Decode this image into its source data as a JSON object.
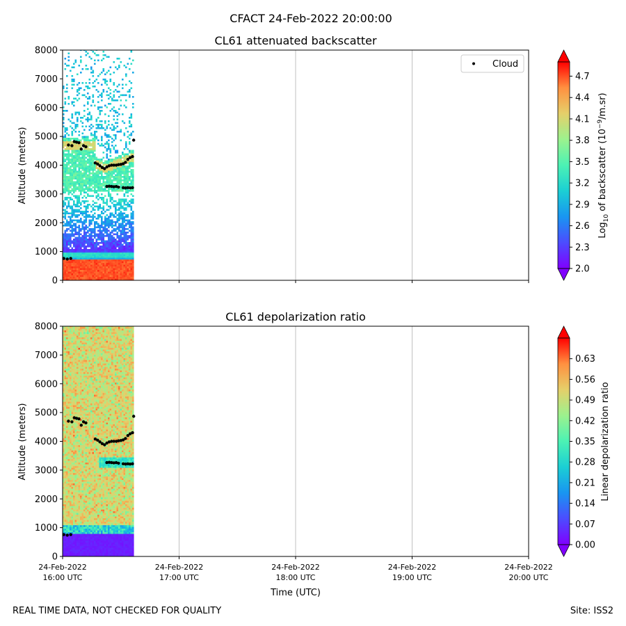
{
  "figure": {
    "suptitle": "CFACT 24-Feb-2022 20:00:00",
    "footer_left": "REAL TIME DATA, NOT CHECKED FOR QUALITY",
    "footer_right": "Site: ISS2",
    "xlabel": "Time (UTC)"
  },
  "chart_data": [
    {
      "type": "heatmap",
      "title": "CL61 attenuated backscatter",
      "ylabel": "Altitude (meters)",
      "ylim": [
        0,
        8000
      ],
      "yticks": [
        "0",
        "1000",
        "2000",
        "3000",
        "4000",
        "5000",
        "6000",
        "7000",
        "8000"
      ],
      "xlim_hours_utc": [
        16,
        20
      ],
      "xticks": [
        {
          "date": "24-Feb-2022",
          "time": "16:00 UTC"
        },
        {
          "date": "24-Feb-2022",
          "time": "17:00 UTC"
        },
        {
          "date": "24-Feb-2022",
          "time": "18:00 UTC"
        },
        {
          "date": "24-Feb-2022",
          "time": "19:00 UTC"
        },
        {
          "date": "24-Feb-2022",
          "time": "20:00 UTC"
        }
      ],
      "data_end_hour_utc": 16.61,
      "legend": {
        "label": "Cloud",
        "position": "upper right"
      },
      "colorbar": {
        "label_prefix": "Log",
        "label_sub": "10",
        "label_mid": " of backscatter (10",
        "label_sup": "−9",
        "label_suffix": "/m.sr)",
        "min": 2.0,
        "max": 4.9,
        "ticks": [
          "2.0",
          "2.3",
          "2.6",
          "2.9",
          "3.2",
          "3.5",
          "3.8",
          "4.1",
          "4.4",
          "4.7"
        ],
        "colormap": "rainbow"
      }
    },
    {
      "type": "heatmap",
      "title": "CL61 depolarization ratio",
      "ylabel": "Altitude (meters)",
      "ylim": [
        0,
        8000
      ],
      "yticks": [
        "0",
        "1000",
        "2000",
        "3000",
        "4000",
        "5000",
        "6000",
        "7000",
        "8000"
      ],
      "xlim_hours_utc": [
        16,
        20
      ],
      "xticks": [
        {
          "date": "24-Feb-2022",
          "time": "16:00 UTC"
        },
        {
          "date": "24-Feb-2022",
          "time": "17:00 UTC"
        },
        {
          "date": "24-Feb-2022",
          "time": "18:00 UTC"
        },
        {
          "date": "24-Feb-2022",
          "time": "19:00 UTC"
        },
        {
          "date": "24-Feb-2022",
          "time": "20:00 UTC"
        }
      ],
      "data_end_hour_utc": 16.61,
      "colorbar": {
        "label": "Linear depolarization ratio",
        "min": 0.0,
        "max": 0.7,
        "ticks": [
          "0.00",
          "0.07",
          "0.14",
          "0.21",
          "0.28",
          "0.35",
          "0.42",
          "0.49",
          "0.56",
          "0.63"
        ],
        "colormap": "rainbow"
      }
    }
  ],
  "cloud_points_hours_alt": [
    [
      16.01,
      760
    ],
    [
      16.04,
      740
    ],
    [
      16.07,
      760
    ],
    [
      16.05,
      4700
    ],
    [
      16.08,
      4680
    ],
    [
      16.1,
      4820
    ],
    [
      16.12,
      4800
    ],
    [
      16.14,
      4780
    ],
    [
      16.16,
      4560
    ],
    [
      16.18,
      4680
    ],
    [
      16.2,
      4640
    ],
    [
      16.28,
      4080
    ],
    [
      16.3,
      4040
    ],
    [
      16.32,
      3980
    ],
    [
      16.34,
      3920
    ],
    [
      16.36,
      3880
    ],
    [
      16.38,
      3940
    ],
    [
      16.4,
      3980
    ],
    [
      16.42,
      4000
    ],
    [
      16.44,
      4000
    ],
    [
      16.46,
      4000
    ],
    [
      16.48,
      4020
    ],
    [
      16.5,
      4030
    ],
    [
      16.52,
      4050
    ],
    [
      16.54,
      4100
    ],
    [
      16.56,
      4200
    ],
    [
      16.58,
      4260
    ],
    [
      16.6,
      4300
    ],
    [
      16.38,
      3260
    ],
    [
      16.4,
      3270
    ],
    [
      16.42,
      3260
    ],
    [
      16.44,
      3250
    ],
    [
      16.46,
      3260
    ],
    [
      16.48,
      3240
    ],
    [
      16.52,
      3220
    ],
    [
      16.54,
      3210
    ],
    [
      16.56,
      3220
    ],
    [
      16.58,
      3210
    ],
    [
      16.6,
      3220
    ],
    [
      16.61,
      4870
    ]
  ]
}
